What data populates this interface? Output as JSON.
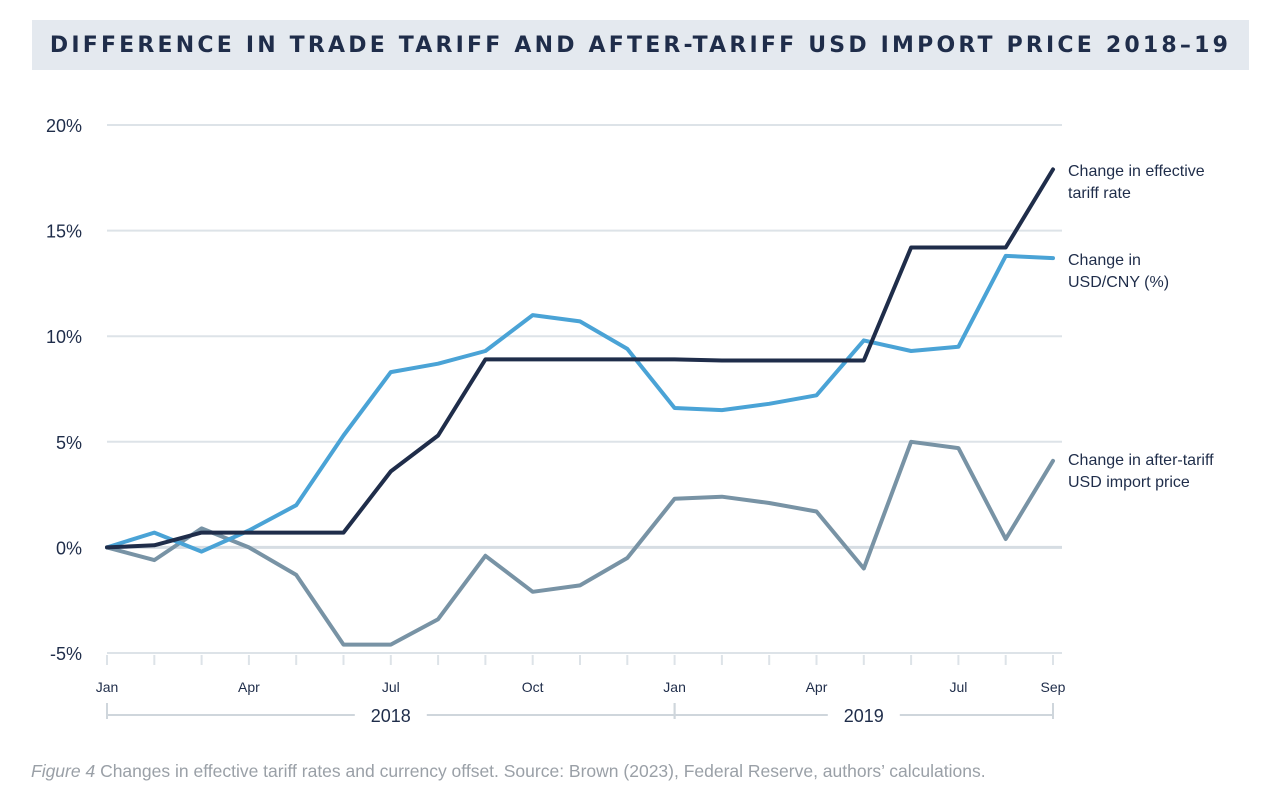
{
  "title": "DIFFERENCE IN TRADE TARIFF AND AFTER-TARIFF USD IMPORT PRICE 2018–19",
  "caption": {
    "label": "Figure 4",
    "text": " Changes in effective tariff rates and currency offset. Source: Brown (2023), Federal Reserve, authors’ calculations."
  },
  "colors": {
    "tariff": "#1f2d4a",
    "usdcny": "#4aa3d6",
    "import_price": "#7893a5",
    "grid": "#dde3e8",
    "zero_line": "#d6dde3",
    "axis_text": "#1f2d4a",
    "year_bracket": "#cfd6dc"
  },
  "chart_data": {
    "type": "line",
    "x": [
      "Jan",
      "Feb",
      "Mar",
      "Apr",
      "May",
      "Jun",
      "Jul",
      "Aug",
      "Sep",
      "Oct",
      "Nov",
      "Dec",
      "Jan",
      "Feb",
      "Mar",
      "Apr",
      "May",
      "Jun",
      "Jul",
      "Aug",
      "Sep"
    ],
    "x_tick_labels": [
      {
        "index": 0,
        "label": "Jan"
      },
      {
        "index": 3,
        "label": "Apr"
      },
      {
        "index": 6,
        "label": "Jul"
      },
      {
        "index": 9,
        "label": "Oct"
      },
      {
        "index": 12,
        "label": "Jan"
      },
      {
        "index": 15,
        "label": "Apr"
      },
      {
        "index": 18,
        "label": "Jul"
      },
      {
        "index": 20,
        "label": "Sep"
      }
    ],
    "years": [
      {
        "label": "2018",
        "start_index": 0,
        "end_index": 12
      },
      {
        "label": "2019",
        "start_index": 12,
        "end_index": 20
      }
    ],
    "y_ticks": [
      -5,
      0,
      5,
      10,
      15,
      20
    ],
    "y_tick_labels": [
      "-5%",
      "0%",
      "5%",
      "10%",
      "15%",
      "20%"
    ],
    "ylim": [
      -5,
      20
    ],
    "grid": true,
    "legend": "inline-right",
    "series": [
      {
        "key": "tariff",
        "name": "Change in effective tariff rate",
        "label_lines": [
          "Change in effective",
          "tariff rate"
        ],
        "values": [
          0,
          0.1,
          0.7,
          0.7,
          0.7,
          0.7,
          3.6,
          5.3,
          8.9,
          8.9,
          8.9,
          8.9,
          8.9,
          8.85,
          8.85,
          8.85,
          8.85,
          14.2,
          14.2,
          14.2,
          17.9
        ]
      },
      {
        "key": "usdcny",
        "name": "Change in USD/CNY (%)",
        "label_lines": [
          "Change in",
          "USD/CNY (%)"
        ],
        "values": [
          0,
          0.7,
          -0.2,
          0.8,
          2.0,
          5.3,
          8.3,
          8.7,
          9.3,
          11.0,
          10.7,
          9.4,
          6.6,
          6.5,
          6.8,
          7.2,
          9.8,
          9.3,
          9.5,
          13.8,
          13.7
        ]
      },
      {
        "key": "import_price",
        "name": "Change in after-tariff USD import price",
        "label_lines": [
          "Change in after-tariff",
          "USD import price"
        ],
        "values": [
          0,
          -0.6,
          0.9,
          0,
          -1.3,
          -4.6,
          -4.6,
          -3.4,
          -0.4,
          -2.1,
          -1.8,
          -0.5,
          2.3,
          2.4,
          2.1,
          1.7,
          -1.0,
          5.0,
          4.7,
          0.4,
          4.1
        ]
      }
    ]
  }
}
